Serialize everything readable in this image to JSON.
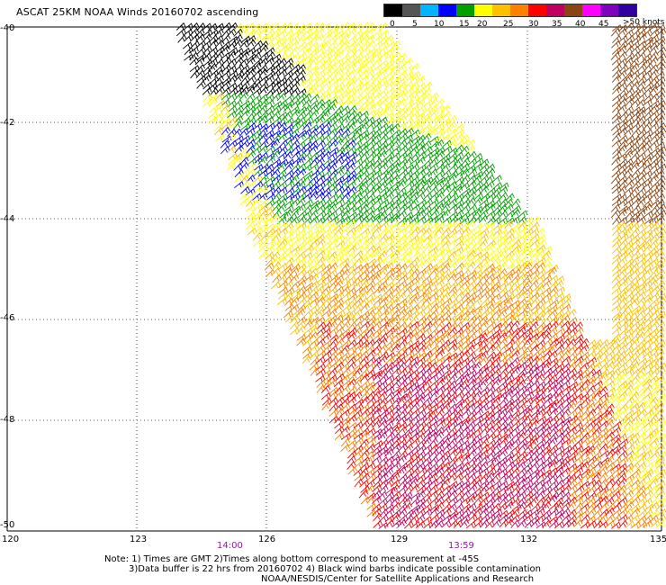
{
  "title": "ASCAT 25KM NOAA Winds 20160702 ascending",
  "legend": {
    "colors": [
      "#000000",
      "#555555",
      "#00b4ff",
      "#0000ff",
      "#00a000",
      "#ffff00",
      "#ffc000",
      "#ff8000",
      "#ff0000",
      "#c00060",
      "#8b4513",
      "#ff00ff",
      "#8000c0",
      "#3000a0"
    ],
    "labels": [
      "0",
      "5",
      "10",
      "15",
      "20",
      "25",
      "30",
      "35",
      "40",
      "45"
    ],
    "units": ">50 knots"
  },
  "axes": {
    "lat_labels": [
      "-40",
      "-42",
      "-44",
      "-46",
      "-48",
      "-50"
    ],
    "lon_labels": [
      "120",
      "123",
      "126",
      "129",
      "132",
      "135"
    ]
  },
  "times": [
    "14:00",
    "13:59"
  ],
  "notes": {
    "line1": "Note: 1) Times are GMT 2)Times along bottom correspond to measurement at -45S",
    "line2": "3)Data buffer is 22 hrs from 20160702 4) Black wind barbs indicate possible contamination",
    "line3": "NOAA/NESDIS/Center for Satellite Applications and Research"
  }
}
